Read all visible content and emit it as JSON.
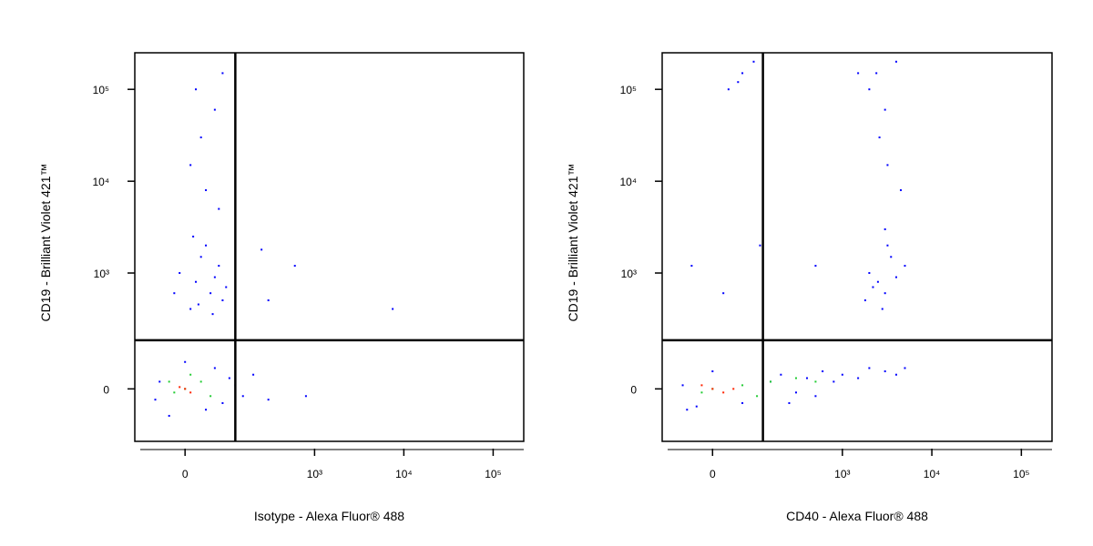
{
  "chart_data": [
    {
      "type": "scatter",
      "xlabel": "Isotype - Alexa Fluor® 488",
      "ylabel": "CD19 - Brilliant Violet 421™",
      "xscale": "biexponential",
      "yscale": "biexponential",
      "xlim": [
        -120,
        220000
      ],
      "ylim": [
        -190,
        250000
      ],
      "xticks": [
        0,
        {
          "value": 1000,
          "label": "10³"
        },
        {
          "value": 10000,
          "label": "10⁴"
        },
        {
          "value": 100000,
          "label": "10⁵"
        }
      ],
      "yticks": [
        0,
        {
          "value": 1000,
          "label": "10³"
        },
        {
          "value": 10000,
          "label": "10⁴"
        },
        {
          "value": 100000,
          "label": "10⁵"
        }
      ],
      "gates": {
        "x": 120,
        "y": 170
      },
      "series": [
        {
          "color": "#0000ff",
          "x": [
            20,
            50,
            -10,
            80,
            30,
            60,
            10,
            90,
            40,
            -20,
            70,
            25,
            55,
            15,
            30,
            60,
            20,
            80,
            40,
            70,
            10,
            -50,
            80,
            100,
            -30,
            60,
            120,
            150,
            -60,
            0,
            40,
            200,
            300,
            800,
            600,
            7500,
            250,
            300
          ],
          "y": [
            800,
            600,
            1000,
            500,
            1500,
            900,
            400,
            700,
            2000,
            600,
            1200,
            450,
            350,
            2500,
            30000,
            60000,
            100000,
            150000,
            8000,
            5000,
            15000,
            20,
            -40,
            30,
            -80,
            60,
            10,
            -20,
            -30,
            80,
            -60,
            40,
            -30,
            -20,
            1200,
            400,
            1800,
            500
          ]
        },
        {
          "color": "#22cc33",
          "x": [
            0,
            30,
            -20,
            50,
            10,
            -30
          ],
          "y": [
            0,
            20,
            -10,
            -20,
            40,
            20
          ]
        },
        {
          "color": "#ff2200",
          "x": [
            0,
            10,
            -10
          ],
          "y": [
            0,
            -10,
            5
          ]
        }
      ]
    },
    {
      "type": "scatter",
      "xlabel": "CD40 - Alexa Fluor® 488",
      "ylabel": "CD19 - Brilliant Violet 421™",
      "xscale": "biexponential",
      "yscale": "biexponential",
      "xlim": [
        -120,
        220000
      ],
      "ylim": [
        -190,
        250000
      ],
      "xticks": [
        0,
        {
          "value": 1000,
          "label": "10³"
        },
        {
          "value": 10000,
          "label": "10⁴"
        },
        {
          "value": 100000,
          "label": "10⁵"
        }
      ],
      "yticks": [
        0,
        {
          "value": 1000,
          "label": "10³"
        },
        {
          "value": 10000,
          "label": "10⁴"
        },
        {
          "value": 100000,
          "label": "10⁵"
        }
      ],
      "gates": {
        "x": 120,
        "y": 170
      },
      "series": [
        {
          "color": "#0000ff",
          "x": [
            -60,
            -30,
            0,
            60,
            150,
            200,
            300,
            400,
            600,
            800,
            1000,
            1500,
            2000,
            3000,
            4000,
            500,
            250,
            5000,
            -50,
            2500,
            3000,
            2000,
            4000,
            3500,
            2800,
            3200,
            2200,
            5000,
            1800,
            3000,
            2600,
            3000,
            2400,
            4000,
            3200,
            4500,
            2000,
            30,
            60,
            90,
            50,
            20,
            -40,
            110,
            500,
            1500
          ],
          "y": [
            10,
            -50,
            50,
            -40,
            20,
            40,
            -10,
            30,
            50,
            20,
            40,
            30,
            60,
            50,
            40,
            -20,
            -40,
            60,
            -60,
            800,
            600,
            1000,
            900,
            1500,
            400,
            2000,
            700,
            1200,
            500,
            3000,
            30000,
            60000,
            150000,
            200000,
            15000,
            8000,
            100000,
            100000,
            150000,
            200000,
            120000,
            600,
            1200,
            2000,
            1200,
            150000
          ]
        },
        {
          "color": "#22cc33",
          "x": [
            0,
            60,
            150,
            300,
            -20,
            500,
            100
          ],
          "y": [
            0,
            10,
            20,
            30,
            -10,
            20,
            -20
          ]
        },
        {
          "color": "#ff2200",
          "x": [
            0,
            -20,
            40,
            20
          ],
          "y": [
            0,
            10,
            0,
            -10
          ]
        }
      ]
    }
  ]
}
